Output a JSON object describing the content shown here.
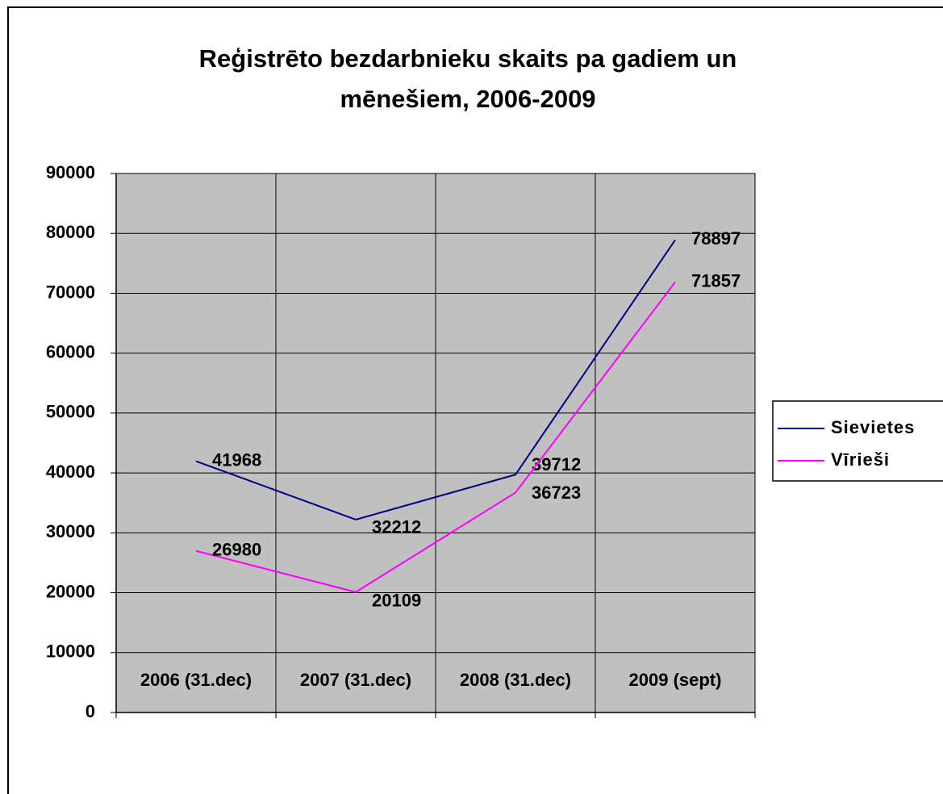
{
  "chart_data": {
    "type": "line",
    "title": [
      "Reģistrēto bezdarbnieku skaits pa gadiem un",
      "mēnešiem, 2006-2009"
    ],
    "categories": [
      "2006 (31.dec)",
      "2007 (31.dec)",
      "2008 (31.dec)",
      "2009 (sept)"
    ],
    "series": [
      {
        "name": "Sievietes",
        "color": "#000080",
        "values": [
          41968,
          32212,
          39712,
          78897
        ]
      },
      {
        "name": "Vīrieši",
        "color": "#ff00ff",
        "values": [
          26980,
          20109,
          36723,
          71857
        ]
      }
    ],
    "ylim": [
      0,
      90000
    ],
    "yticks": [
      0,
      10000,
      20000,
      30000,
      40000,
      50000,
      60000,
      70000,
      80000,
      90000
    ],
    "grid": true,
    "legend": "right",
    "plot_background": "#c0c0c0"
  }
}
